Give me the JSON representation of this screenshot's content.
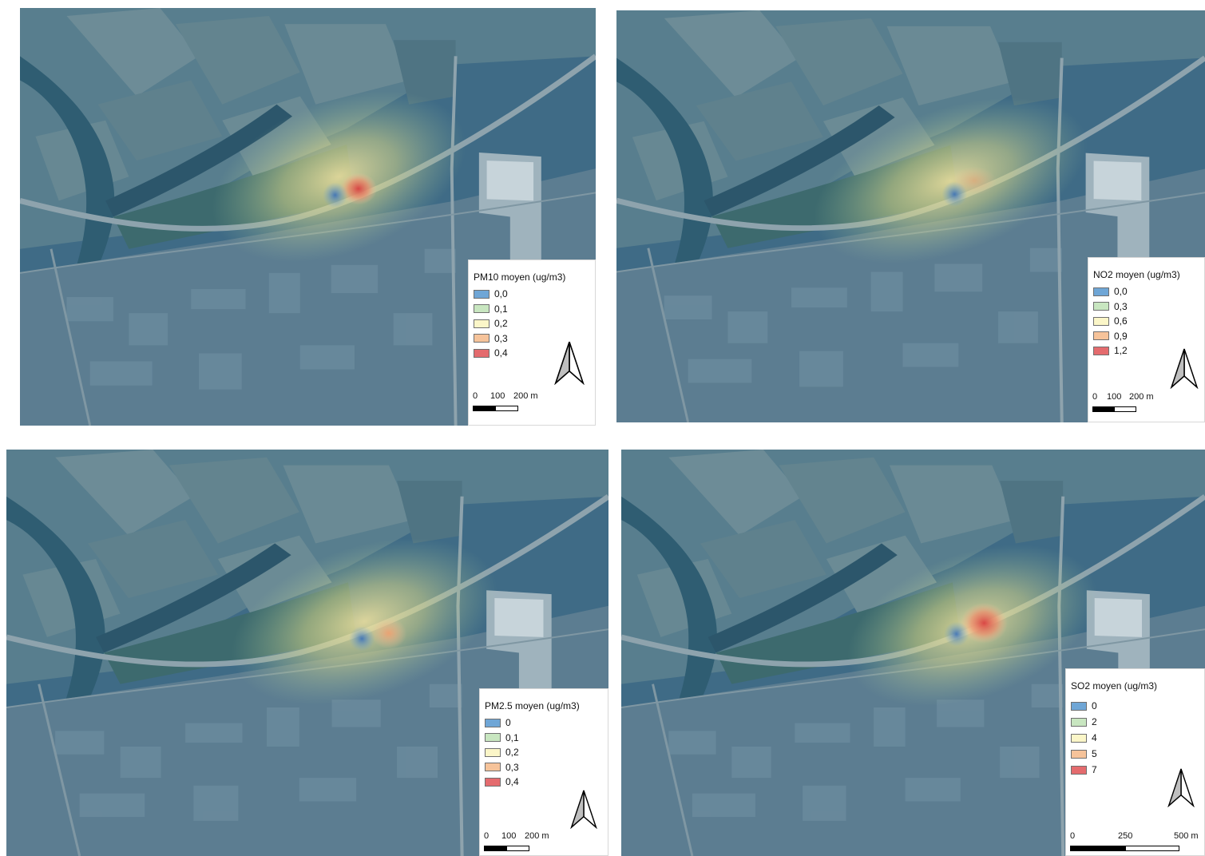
{
  "colors": {
    "water": "#2f5d72",
    "base": "#3f6b86",
    "field_light": "#6d8c97",
    "field_dark": "#4c7282",
    "road": "#8ea3ad",
    "urban": "#5c7d91",
    "legend_swatches": [
      "#6fa6d6",
      "#c8e6c0",
      "#fbf6c8",
      "#f6c39a",
      "#e46b6e"
    ]
  },
  "panels": [
    {
      "id": "pm10",
      "legend_title": "PM10 moyen (ug/m3)",
      "legend_items": [
        "0,0",
        "0,1",
        "0,2",
        "0,3",
        "0,4"
      ],
      "scale_labels": [
        "0",
        "100",
        "200 m"
      ],
      "hotspot_levels": {
        "low": 0.0,
        "high": 0.4
      }
    },
    {
      "id": "no2",
      "legend_title": "NO2 moyen (ug/m3)",
      "legend_items": [
        "0,0",
        "0,3",
        "0,6",
        "0,9",
        "1,2"
      ],
      "scale_labels": [
        "0",
        "100",
        "200 m"
      ],
      "hotspot_levels": {
        "low": 0.0,
        "high": 0.6
      }
    },
    {
      "id": "pm25",
      "legend_title": "PM2.5 moyen (ug/m3)",
      "legend_items": [
        "0",
        "0,1",
        "0,2",
        "0,3",
        "0,4"
      ],
      "scale_labels": [
        "0",
        "100",
        "200 m"
      ],
      "hotspot_levels": {
        "low": 0.0,
        "high": 0.3
      }
    },
    {
      "id": "so2",
      "legend_title": "SO2 moyen (ug/m3)",
      "legend_items": [
        "0",
        "2",
        "4",
        "5",
        "7"
      ],
      "scale_labels": [
        "0",
        "250",
        "500 m"
      ],
      "hotspot_levels": {
        "low": 0,
        "high": 7
      }
    }
  ],
  "icons": {
    "north": "north-arrow-icon"
  }
}
